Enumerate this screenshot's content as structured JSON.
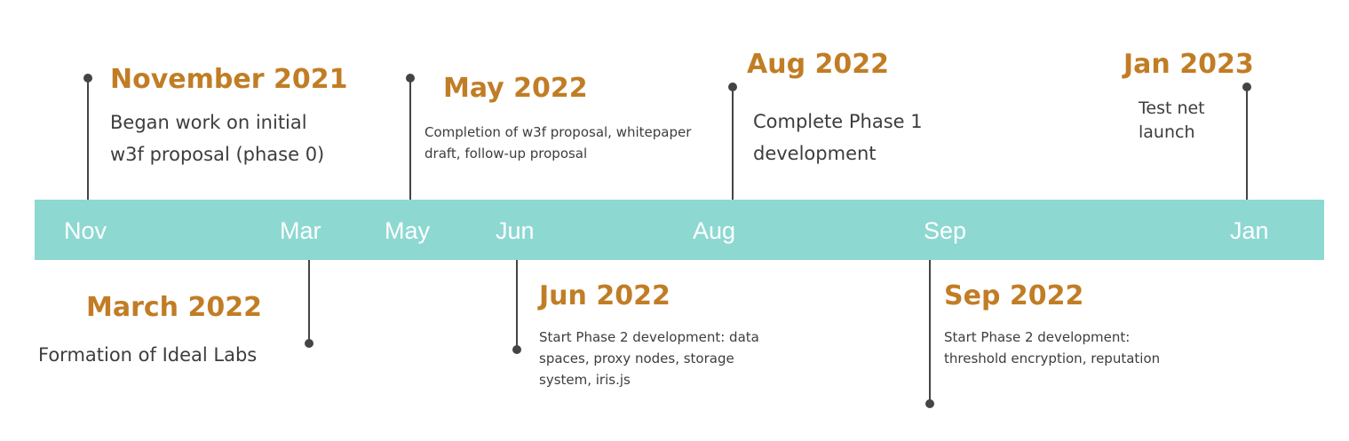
{
  "band": {
    "color": "#8ed8d2",
    "months": [
      "Nov",
      "Mar",
      "May",
      "Jun",
      "Aug",
      "Sep",
      "Jan"
    ]
  },
  "colors": {
    "date": "#c17d25",
    "stem": "#444444",
    "text": "#3d3d3d"
  },
  "events": [
    {
      "date": "November 2021",
      "description": "Began work on initial\nw3f proposal (phase 0)"
    },
    {
      "date": "March 2022",
      "description": "Formation of Ideal Labs"
    },
    {
      "date": "May 2022",
      "description": "Completion of w3f proposal, whitepaper\ndraft, follow-up proposal"
    },
    {
      "date": "Jun 2022",
      "description": "Start Phase 2 development: data\nspaces, proxy nodes, storage\nsystem, iris.js"
    },
    {
      "date": "Aug 2022",
      "description": "Complete Phase 1\ndevelopment"
    },
    {
      "date": "Sep 2022",
      "description": "Start Phase 2 development:\nthreshold encryption, reputation"
    },
    {
      "date": "Jan 2023",
      "description": "Test net\nlaunch"
    }
  ]
}
